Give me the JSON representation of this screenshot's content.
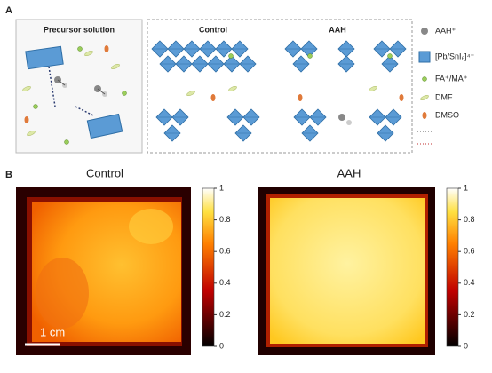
{
  "panel_a": {
    "label": "A",
    "precursor_title": "Precursor solution",
    "control_title": "Control",
    "aah_title": "AAH",
    "legend": [
      "AAH⁺",
      "[Pb/SnI₆]⁴⁻",
      "FA⁺/MA⁺",
      "DMF",
      "DMSO"
    ]
  },
  "panel_b": {
    "label": "B",
    "images": [
      {
        "title": "Control",
        "scale_bar": "1 cm"
      },
      {
        "title": "AAH"
      }
    ],
    "colorbar": {
      "lim": [
        0,
        1
      ],
      "ticks": [
        0,
        0.2,
        0.4,
        0.6,
        0.8,
        1
      ]
    }
  }
}
